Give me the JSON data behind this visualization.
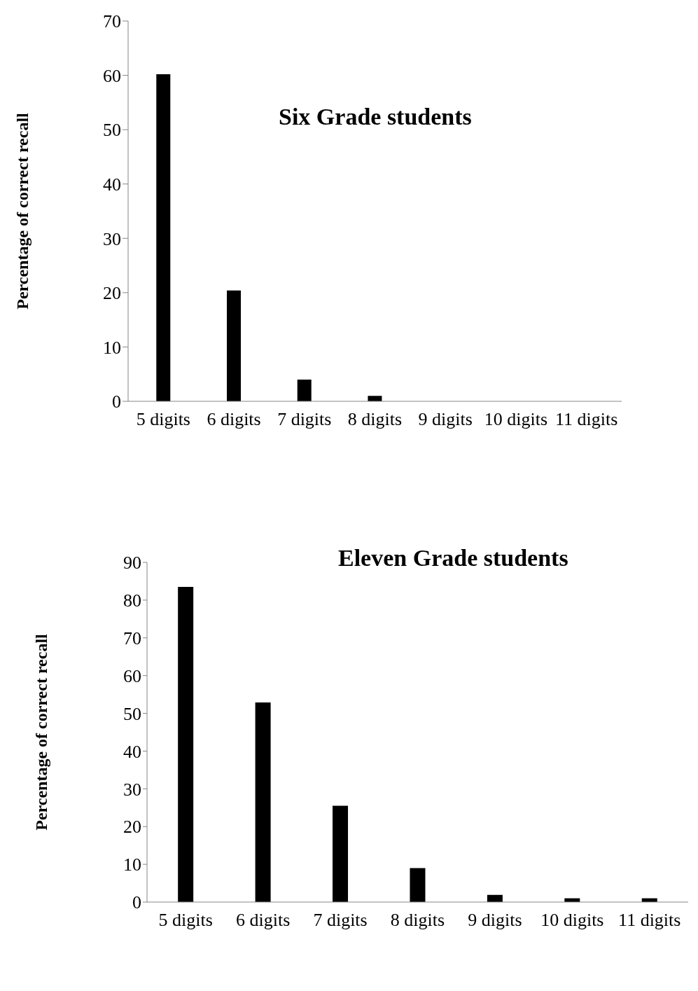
{
  "chart_data": [
    {
      "type": "bar",
      "title": "Six Grade students",
      "ylabel": "Percentage of correct recall",
      "categories": [
        "5 digits",
        "6 digits",
        "7 digits",
        "8 digits",
        "9 digits",
        "10 digits",
        "11 digits"
      ],
      "values": [
        60.2,
        20.4,
        4,
        1,
        0,
        0,
        0
      ],
      "color": "#000000",
      "ylim": [
        0,
        70
      ],
      "yticks": [
        0,
        10,
        20,
        30,
        40,
        50,
        60,
        70
      ],
      "grid": false,
      "legend": false
    },
    {
      "type": "bar",
      "title": "Eleven Grade students",
      "ylabel": "Percentage of correct recall",
      "categories": [
        "5 digits",
        "6 digits",
        "7 digits",
        "8 digits",
        "9 digits",
        "10 digits",
        "11 digits"
      ],
      "values": [
        83.5,
        52.9,
        25.5,
        9,
        1.9,
        1,
        1
      ],
      "color": "#000000",
      "ylim": [
        0,
        90
      ],
      "yticks": [
        0,
        10,
        20,
        30,
        40,
        50,
        60,
        70,
        80,
        90
      ],
      "grid": false,
      "legend": false
    }
  ]
}
